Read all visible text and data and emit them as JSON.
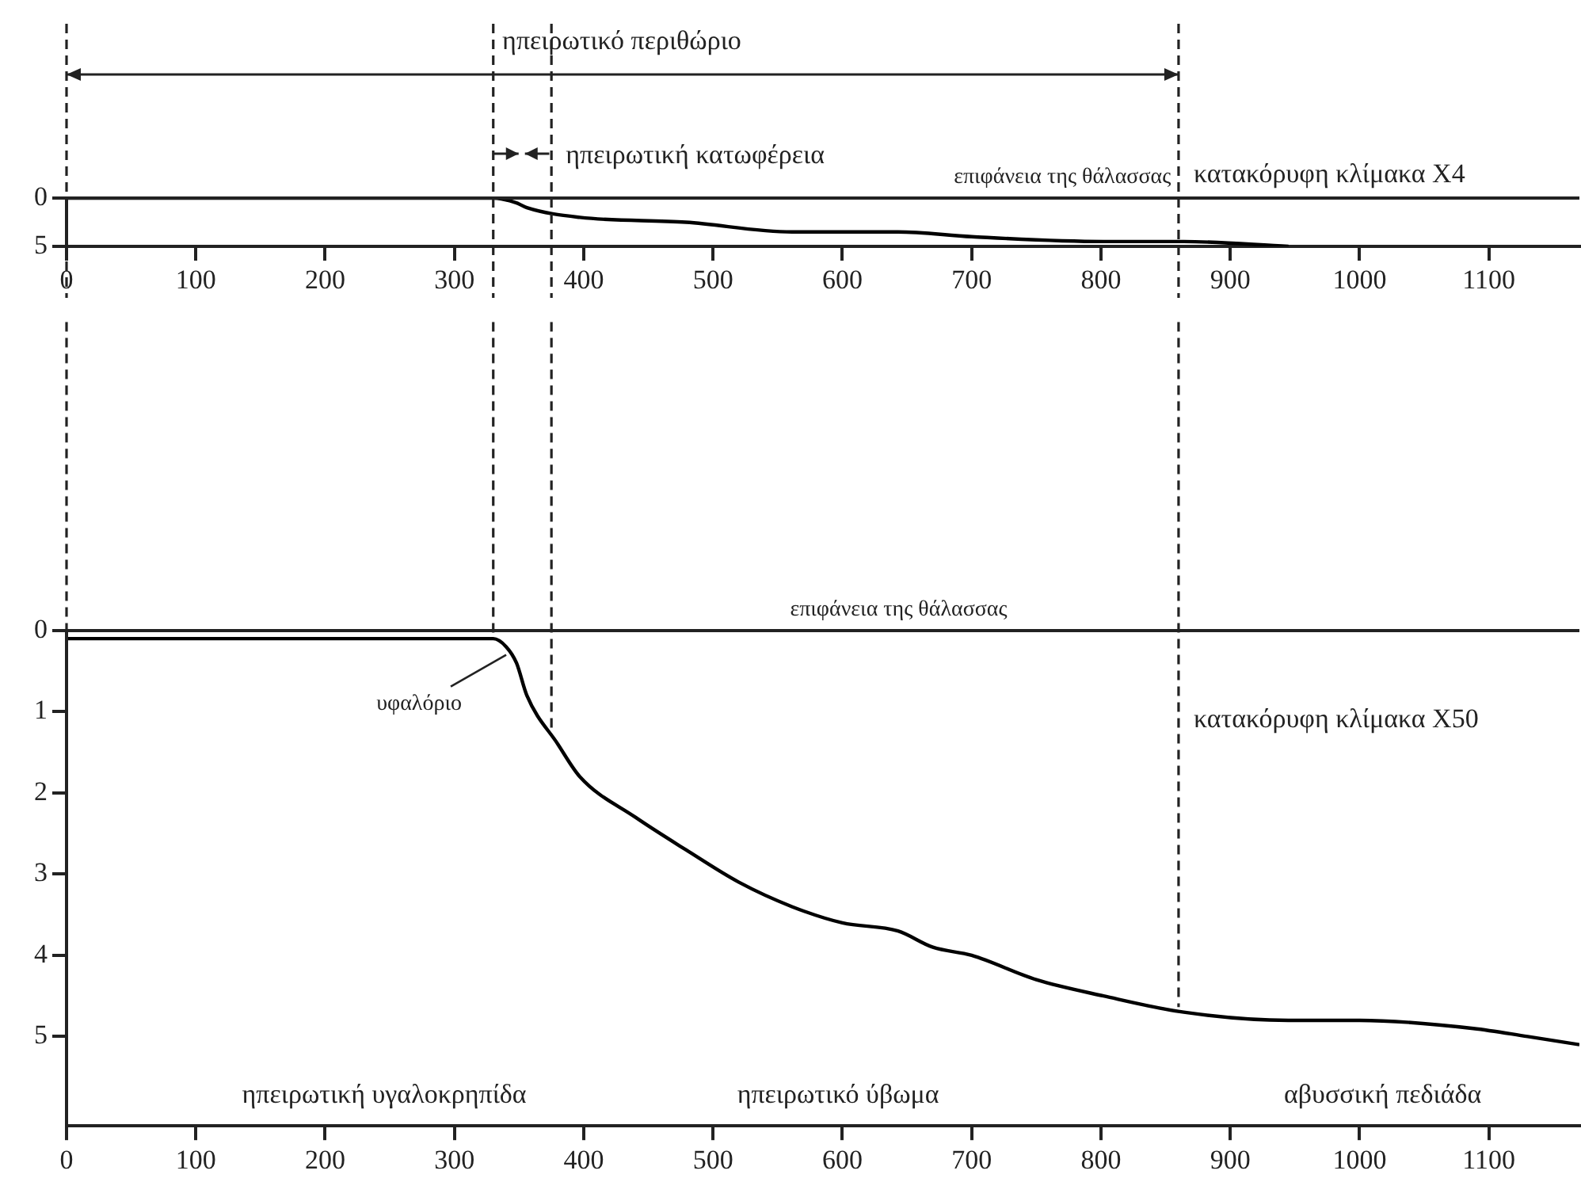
{
  "chart_data": [
    {
      "type": "line",
      "x": [
        0,
        330,
        348,
        356,
        397,
        479,
        561,
        643,
        700,
        802,
        864,
        945
      ],
      "series": [
        {
          "color": "#000000",
          "values": [
            0,
            0,
            0.5,
            1,
            2,
            2.5,
            3.5,
            3.5,
            4,
            4.5,
            4.5,
            5
          ]
        }
      ],
      "xlim": [
        0,
        1170
      ],
      "xticks": [
        0,
        100,
        200,
        300,
        400,
        500,
        600,
        700,
        800,
        900,
        1000,
        1100
      ],
      "ylim": [
        5,
        0
      ],
      "yticks": [
        0,
        5
      ],
      "marker": "none",
      "line_style": "solid",
      "grid": false,
      "legend": false,
      "ref_lines": [
        {
          "axis": "y",
          "value": 0,
          "label": "επιφάνεια της θάλασσας"
        },
        {
          "axis": "x",
          "value": 0,
          "line_style": "dashed"
        },
        {
          "axis": "x",
          "value": 330,
          "line_style": "dashed"
        },
        {
          "axis": "x",
          "value": 375,
          "line_style": "dashed"
        },
        {
          "axis": "x",
          "value": 860,
          "line_style": "dashed"
        }
      ],
      "annotations": [
        "κατακόρυφη κλίμακα X4",
        "ηπειρωτικό περιθώριο",
        "ηπειρωτική κατωφέρεια"
      ]
    },
    {
      "type": "line",
      "x": [
        0,
        100,
        200,
        300,
        330,
        340,
        348,
        356,
        380,
        397,
        440,
        479,
        520,
        561,
        600,
        643,
        670,
        700,
        750,
        802,
        864,
        945,
        1000,
        1088,
        1130,
        1170
      ],
      "series": [
        {
          "color": "#000000",
          "values": [
            0.1,
            0.1,
            0.1,
            0.1,
            0.1,
            0.2,
            0.4,
            0.8,
            1.4,
            1.8,
            2.3,
            2.7,
            3.1,
            3.4,
            3.6,
            3.7,
            3.9,
            4.0,
            4.3,
            4.5,
            4.7,
            4.8,
            4.8,
            4.9,
            5.0,
            5.1
          ]
        }
      ],
      "xlim": [
        0,
        1170
      ],
      "xticks": [
        0,
        100,
        200,
        300,
        400,
        500,
        600,
        700,
        800,
        900,
        1000,
        1100
      ],
      "ylim": [
        6.1,
        -3.8
      ],
      "yticks": [
        0,
        1,
        2,
        3,
        4,
        5
      ],
      "marker": "none",
      "line_style": "solid",
      "grid": false,
      "legend": false,
      "ref_lines": [
        {
          "axis": "y",
          "value": 0,
          "label": "επιφάνεια της θάλασσας"
        },
        {
          "axis": "x",
          "value": 0,
          "line_style": "dashed"
        },
        {
          "axis": "x",
          "value": 330,
          "line_style": "dashed"
        },
        {
          "axis": "x",
          "value": 375,
          "line_style": "dashed"
        },
        {
          "axis": "x",
          "value": 860,
          "line_style": "dashed"
        }
      ],
      "annotations": [
        "κατακόρυφη κλίμακα X50",
        {
          "text": "υφαλόριο",
          "x": 340,
          "y": 0.3
        },
        "ηπειρωτική υγαλοκρηπίδα",
        "ηπειρωτικό ύβωμα",
        "αβυσσική πεδιάδα"
      ]
    }
  ]
}
